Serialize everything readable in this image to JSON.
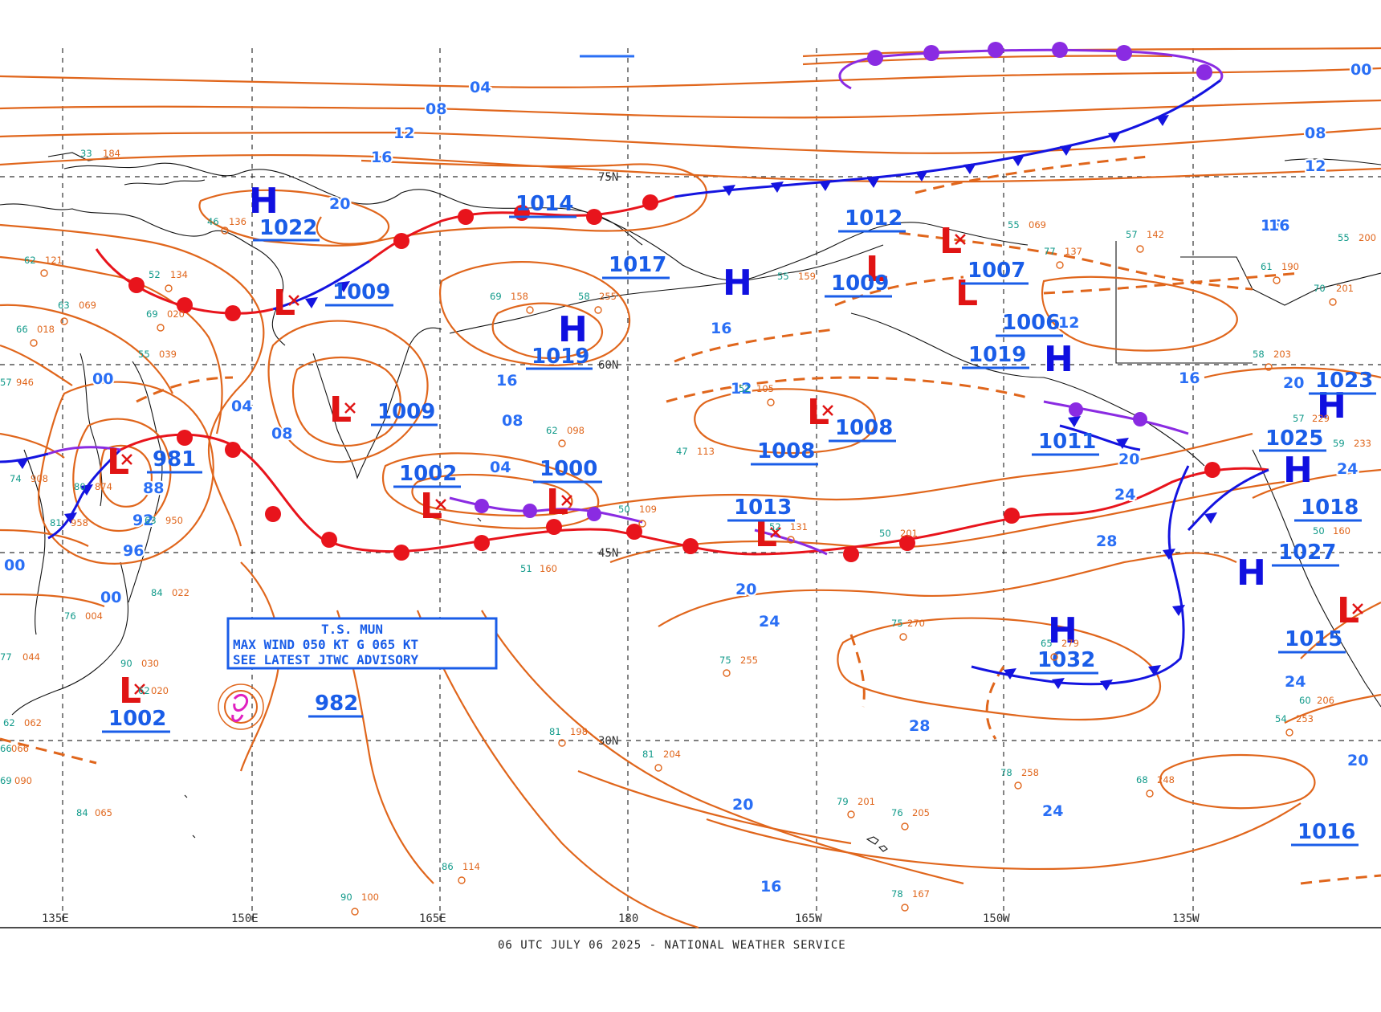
{
  "footer": "06 UTC JULY 06 2025 - NATIONAL WEATHER SERVICE",
  "lat_labels": [
    "75N",
    "60N",
    "45N",
    "30N"
  ],
  "lon_labels": [
    "135E",
    "150E",
    "165E",
    "180",
    "165W",
    "150W",
    "135W"
  ],
  "advisory": [
    "T.S. MUN",
    "MAX WIND 050 KT G 065 KT",
    "SEE LATEST JTWC ADVISORY"
  ],
  "highs": [
    {
      "label": "H",
      "value": "1022"
    },
    {
      "label": "H",
      "value": "1019"
    },
    {
      "label": "H",
      "value": "1032"
    },
    {
      "label": "H",
      "value": "1027"
    },
    {
      "label": "H",
      "value": "1025"
    },
    {
      "label": "H",
      "value": "1023"
    },
    {
      "label": "H",
      "value": "1019"
    },
    {
      "label": "H",
      "value": "1018"
    }
  ],
  "lows": [
    {
      "label": "L",
      "value": "1009"
    },
    {
      "label": "L",
      "value": "1009"
    },
    {
      "label": "L",
      "value": "981"
    },
    {
      "label": "L",
      "value": "1002"
    },
    {
      "label": "L",
      "value": "1000"
    },
    {
      "label": "L",
      "value": "1013"
    },
    {
      "label": "L",
      "value": "1008"
    },
    {
      "label": "L",
      "value": "1012"
    },
    {
      "label": "L",
      "value": "1007"
    },
    {
      "label": "L",
      "value": "1009"
    },
    {
      "label": "L",
      "value": "1002"
    },
    {
      "label": "L",
      "value": "1015"
    }
  ],
  "centers_other": [
    "1014",
    "1017",
    "1006",
    "1011",
    "1008",
    "1016",
    "982"
  ],
  "isobar_labels": [
    "04",
    "08",
    "12",
    "16",
    "20",
    "00",
    "04",
    "08",
    "00",
    "88",
    "92",
    "96",
    "00",
    "04",
    "08",
    "12",
    "16",
    "12",
    "16",
    "20",
    "24",
    "28",
    "24",
    "20",
    "16",
    "12",
    "16",
    "20",
    "24",
    "28",
    "24",
    "20",
    "16",
    "12",
    "08",
    "04",
    "00",
    "12",
    "16",
    "20",
    "24",
    "20"
  ],
  "stations": [
    {
      "t": "33",
      "p": "184"
    },
    {
      "t": "46",
      "p": "136"
    },
    {
      "t": "62",
      "p": "121"
    },
    {
      "t": "52",
      "p": "134"
    },
    {
      "t": "63",
      "p": "069"
    },
    {
      "t": "69",
      "p": "020"
    },
    {
      "t": "66",
      "p": "018"
    },
    {
      "t": "55",
      "p": "039"
    },
    {
      "t": "57",
      "p": "946"
    },
    {
      "t": "74",
      "p": "908"
    },
    {
      "t": "80",
      "p": "874"
    },
    {
      "t": "81",
      "p": "958"
    },
    {
      "t": "63",
      "p": "950"
    },
    {
      "t": "84",
      "p": "022"
    },
    {
      "t": "76",
      "p": "004"
    },
    {
      "t": "77",
      "p": "044"
    },
    {
      "t": "90",
      "p": "030"
    },
    {
      "t": "62",
      "p": "020"
    },
    {
      "t": "62",
      "p": "062"
    },
    {
      "t": "66",
      "p": "066"
    },
    {
      "t": "69",
      "p": "090"
    },
    {
      "t": "84",
      "p": "065"
    },
    {
      "t": "69",
      "p": "158"
    },
    {
      "t": "58",
      "p": "255"
    },
    {
      "t": "62",
      "p": "098"
    },
    {
      "t": "50",
      "p": "109"
    },
    {
      "t": "47",
      "p": "113"
    },
    {
      "t": "55",
      "p": "159"
    },
    {
      "t": "52",
      "p": "105"
    },
    {
      "t": "52",
      "p": "131"
    },
    {
      "t": "50",
      "p": "201"
    },
    {
      "t": "75",
      "p": "255"
    },
    {
      "t": "75",
      "p": "270"
    },
    {
      "t": "81",
      "p": "198"
    },
    {
      "t": "81",
      "p": "204"
    },
    {
      "t": "86",
      "p": "114"
    },
    {
      "t": "90",
      "p": "100"
    },
    {
      "t": "79",
      "p": "201"
    },
    {
      "t": "76",
      "p": "205"
    },
    {
      "t": "78",
      "p": "167"
    },
    {
      "t": "65",
      "p": "279"
    },
    {
      "t": "78",
      "p": "258"
    },
    {
      "t": "68",
      "p": "248"
    },
    {
      "t": "54",
      "p": "253"
    },
    {
      "t": "60",
      "p": "206"
    },
    {
      "t": "57",
      "p": "142"
    },
    {
      "t": "77",
      "p": "137"
    },
    {
      "t": "55",
      "p": "069"
    },
    {
      "t": "58",
      "p": "203"
    },
    {
      "t": "61",
      "p": "190"
    },
    {
      "t": "70",
      "p": "201"
    },
    {
      "t": "55",
      "p": "200"
    },
    {
      "t": "51",
      "p": "160"
    },
    {
      "t": "57",
      "p": "229"
    },
    {
      "t": "59",
      "p": "233"
    },
    {
      "t": "50",
      "p": "160"
    }
  ],
  "colors": {
    "isobar": "#e0661c",
    "high": "#1010e0",
    "low": "#e01414",
    "cold_front": "#1414e0",
    "warm_front": "#e8141c",
    "occluded": "#8a2be2",
    "label": "#2a6ff5",
    "hurricane": "#e020c0"
  }
}
